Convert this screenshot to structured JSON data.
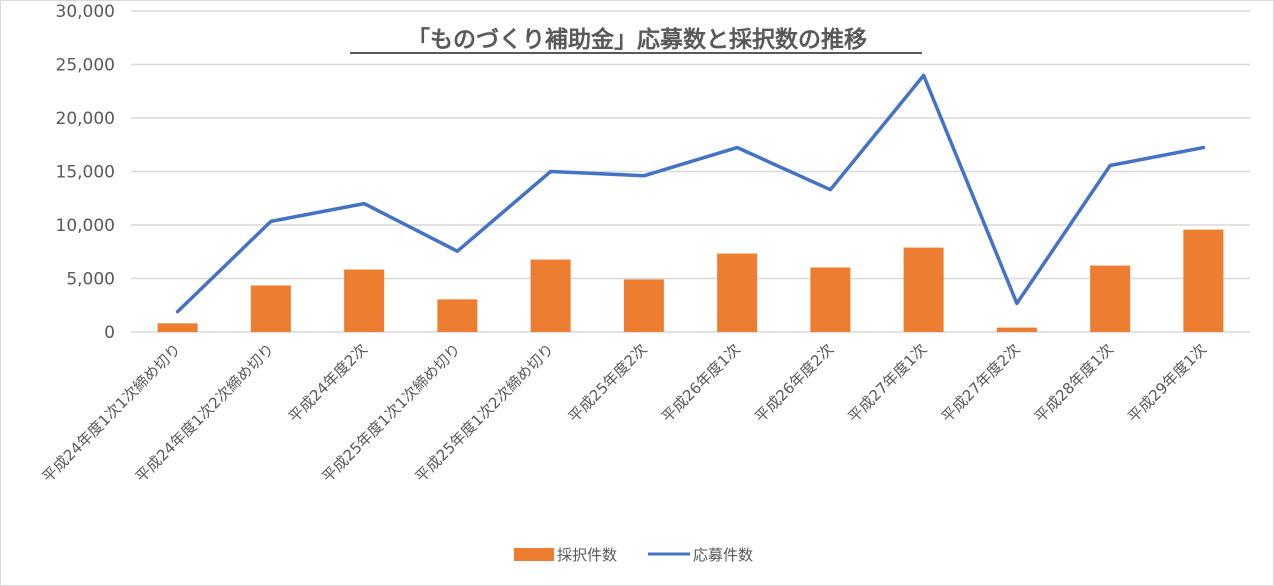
{
  "chart_data": {
    "type": "bar+line",
    "title": "「ものづくり補助金」応募数と採択数の推移",
    "categories": [
      "平成24年度1次1次締め切り",
      "平成24年度1次2次締め切り",
      "平成24年度2次",
      "平成25年度1次1次締め切り",
      "平成25年度1次2次締め切り",
      "平成25年度2次",
      "平成26年度1次",
      "平成26年度2次",
      "平成27年度1次",
      "平成27年度2次",
      "平成28年度1次",
      "平成29年度1次"
    ],
    "series": [
      {
        "name": "採択件数",
        "type": "bar",
        "color": "#ED7D31",
        "values": [
          810,
          4350,
          5840,
          3050,
          6770,
          4910,
          7330,
          6030,
          7890,
          410,
          6210,
          9570
        ]
      },
      {
        "name": "応募件数",
        "type": "line",
        "color": "#4472C4",
        "values": [
          1900,
          10340,
          12000,
          7550,
          15000,
          14600,
          17240,
          13300,
          23980,
          2670,
          15560,
          17240
        ]
      }
    ],
    "ylim": [
      0,
      30000
    ],
    "yticks": [
      0,
      5000,
      10000,
      15000,
      20000,
      25000,
      30000
    ],
    "ytick_labels": [
      "0",
      "5,000",
      "10,000",
      "15,000",
      "20,000",
      "25,000",
      "30,000"
    ],
    "xlabel": "",
    "ylabel": "",
    "grid": true,
    "legend": "bottom"
  }
}
